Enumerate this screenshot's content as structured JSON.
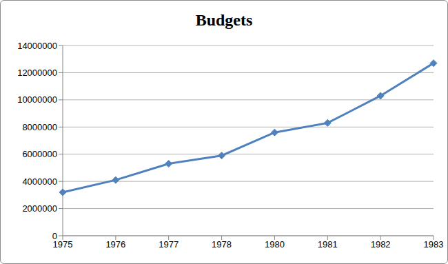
{
  "chart_data": {
    "type": "line",
    "title": "Budgets",
    "categories": [
      "1975",
      "1976",
      "1977",
      "1978",
      "1980",
      "1981",
      "1982",
      "1983"
    ],
    "values": [
      3200000,
      4100000,
      5300000,
      5900000,
      7600000,
      8300000,
      10300000,
      12700000
    ],
    "color": "#4f81bd",
    "marker": "diamond",
    "ylim": [
      0,
      14000000
    ],
    "yticks": [
      0,
      2000000,
      4000000,
      6000000,
      8000000,
      10000000,
      12000000,
      14000000
    ],
    "grid": true
  }
}
